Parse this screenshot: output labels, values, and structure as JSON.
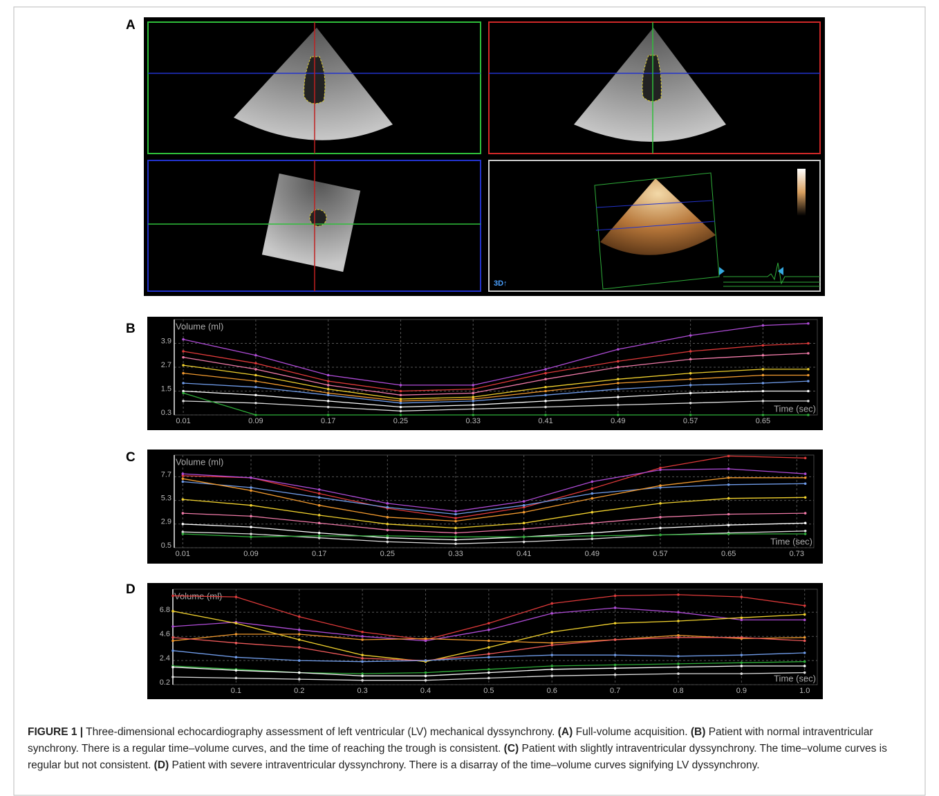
{
  "panels": {
    "A": "A",
    "B": "B",
    "C": "C",
    "D": "D",
    "label_3d": "3D↑"
  },
  "chart_data": [
    {
      "type": "line",
      "y_label": "Volume (ml)",
      "x_label": "Time (sec)",
      "xlim": [
        0,
        0.71
      ],
      "ylim": [
        0.3,
        5.1
      ],
      "xticks": [
        0.01,
        0.09,
        0.17,
        0.25,
        0.33,
        0.41,
        0.49,
        0.57,
        0.65
      ],
      "yticks": [
        0.3,
        1.5,
        2.7,
        3.9
      ],
      "grid": true,
      "x": [
        0.01,
        0.09,
        0.17,
        0.25,
        0.33,
        0.41,
        0.49,
        0.57,
        0.65,
        0.7
      ],
      "series": [
        {
          "color": "#b04cd8",
          "values": [
            4.1,
            3.3,
            2.3,
            1.8,
            1.8,
            2.6,
            3.6,
            4.3,
            4.8,
            4.9
          ]
        },
        {
          "color": "#e03a3a",
          "values": [
            3.5,
            2.9,
            2.0,
            1.5,
            1.6,
            2.4,
            3.0,
            3.5,
            3.8,
            3.9
          ]
        },
        {
          "color": "#f07aa8",
          "values": [
            3.2,
            2.6,
            1.8,
            1.3,
            1.4,
            2.1,
            2.7,
            3.1,
            3.3,
            3.4
          ]
        },
        {
          "color": "#f2d22e",
          "values": [
            2.8,
            2.3,
            1.6,
            1.1,
            1.2,
            1.7,
            2.1,
            2.4,
            2.6,
            2.6
          ]
        },
        {
          "color": "#f29a2e",
          "values": [
            2.4,
            2.0,
            1.4,
            1.0,
            1.1,
            1.5,
            1.9,
            2.1,
            2.3,
            2.3
          ]
        },
        {
          "color": "#6f9be8",
          "values": [
            1.9,
            1.7,
            1.3,
            0.9,
            1.0,
            1.3,
            1.6,
            1.8,
            1.9,
            2.0
          ]
        },
        {
          "color": "#ffffff",
          "values": [
            1.5,
            1.3,
            1.0,
            0.7,
            0.8,
            1.0,
            1.2,
            1.4,
            1.5,
            1.5
          ]
        },
        {
          "color": "#dddddd",
          "values": [
            1.0,
            0.9,
            0.7,
            0.5,
            0.6,
            0.7,
            0.8,
            0.9,
            1.0,
            1.0
          ]
        },
        {
          "color": "#2fae3a",
          "values": [
            1.4,
            0.3,
            0.3,
            0.3,
            0.3,
            0.3,
            0.3,
            0.3,
            0.3,
            0.3
          ]
        }
      ]
    },
    {
      "type": "line",
      "y_label": "Volume (ml)",
      "x_label": "Time (sec)",
      "xlim": [
        0,
        0.75
      ],
      "ylim": [
        0.5,
        9.9
      ],
      "xticks": [
        0.01,
        0.09,
        0.17,
        0.25,
        0.33,
        0.41,
        0.49,
        0.57,
        0.65,
        0.73
      ],
      "yticks": [
        0.5,
        2.9,
        5.3,
        7.7
      ],
      "grid": true,
      "x": [
        0.01,
        0.09,
        0.17,
        0.25,
        0.33,
        0.41,
        0.49,
        0.57,
        0.65,
        0.74
      ],
      "series": [
        {
          "color": "#e03a3a",
          "values": [
            7.8,
            7.6,
            6.0,
            4.5,
            3.5,
            4.6,
            6.5,
            8.6,
            9.8,
            9.6
          ]
        },
        {
          "color": "#b04cd8",
          "values": [
            8.0,
            7.6,
            6.4,
            5.0,
            4.2,
            5.2,
            7.2,
            8.4,
            8.5,
            8.0
          ]
        },
        {
          "color": "#6f9be8",
          "values": [
            7.2,
            6.6,
            5.6,
            4.6,
            3.9,
            4.8,
            6.0,
            6.6,
            6.9,
            7.0
          ]
        },
        {
          "color": "#f29a2e",
          "values": [
            7.5,
            6.3,
            4.8,
            3.6,
            3.2,
            4.1,
            5.5,
            6.8,
            7.6,
            7.6
          ]
        },
        {
          "color": "#f2d22e",
          "values": [
            5.4,
            4.8,
            3.8,
            2.9,
            2.5,
            3.0,
            4.1,
            5.0,
            5.5,
            5.6
          ]
        },
        {
          "color": "#f07aa8",
          "values": [
            4.0,
            3.7,
            3.0,
            2.3,
            2.0,
            2.4,
            3.0,
            3.6,
            3.9,
            4.0
          ]
        },
        {
          "color": "#ffffff",
          "values": [
            2.9,
            2.6,
            2.0,
            1.5,
            1.3,
            1.6,
            2.0,
            2.5,
            2.8,
            3.0
          ]
        },
        {
          "color": "#dddddd",
          "values": [
            2.1,
            1.9,
            1.5,
            1.1,
            0.9,
            1.1,
            1.4,
            1.8,
            2.0,
            2.2
          ]
        },
        {
          "color": "#2fae3a",
          "values": [
            1.9,
            1.6,
            1.7,
            1.7,
            1.6,
            1.6,
            1.7,
            1.8,
            1.9,
            1.9
          ]
        }
      ]
    },
    {
      "type": "line",
      "y_label": "Volume (ml)",
      "x_label": "Time (sec)",
      "xlim": [
        0,
        1.02
      ],
      "ylim": [
        0.2,
        8.9
      ],
      "xticks": [
        0.1,
        0.2,
        0.3,
        0.4,
        0.5,
        0.6,
        0.7,
        0.8,
        0.9,
        {
          "value": 1,
          "label": "1.0"
        }
      ],
      "yticks": [
        0.2,
        2.4,
        4.6,
        6.8
      ],
      "grid": true,
      "x": [
        0,
        0.1,
        0.2,
        0.3,
        0.4,
        0.5,
        0.6,
        0.7,
        0.8,
        0.9,
        1
      ],
      "series": [
        {
          "color": "#e03a3a",
          "values": [
            8.3,
            8.2,
            6.4,
            5.0,
            4.3,
            5.8,
            7.6,
            8.3,
            8.4,
            8.2,
            7.4
          ]
        },
        {
          "color": "#b04cd8",
          "values": [
            5.5,
            5.9,
            5.2,
            4.6,
            4.2,
            5.2,
            6.7,
            7.2,
            6.8,
            6.1,
            6.1
          ]
        },
        {
          "color": "#f2d22e",
          "values": [
            6.9,
            5.8,
            4.3,
            2.9,
            2.3,
            3.6,
            5.0,
            5.8,
            6.0,
            6.3,
            6.6
          ]
        },
        {
          "color": "#f29a2e",
          "values": [
            4.2,
            4.8,
            4.8,
            4.3,
            4.4,
            4.2,
            4.0,
            4.3,
            4.7,
            4.4,
            4.5
          ]
        },
        {
          "color": "#f05a5a",
          "values": [
            4.5,
            4.0,
            3.6,
            2.6,
            2.4,
            3.0,
            3.8,
            4.3,
            4.5,
            4.5,
            4.2
          ]
        },
        {
          "color": "#6f9be8",
          "values": [
            3.3,
            2.7,
            2.4,
            2.3,
            2.4,
            2.7,
            2.9,
            2.9,
            2.8,
            2.9,
            3.1
          ]
        },
        {
          "color": "#2fae3a",
          "values": [
            1.9,
            1.6,
            1.3,
            1.2,
            1.3,
            1.6,
            1.9,
            2.0,
            2.1,
            2.2,
            2.3
          ]
        },
        {
          "color": "#ffffff",
          "values": [
            1.8,
            1.5,
            1.3,
            1.0,
            1.0,
            1.3,
            1.6,
            1.7,
            1.8,
            1.9,
            1.9
          ]
        },
        {
          "color": "#dddddd",
          "values": [
            0.9,
            0.8,
            0.7,
            0.6,
            0.6,
            0.8,
            1.0,
            1.1,
            1.2,
            1.2,
            1.3
          ]
        }
      ]
    }
  ],
  "caption": [
    {
      "text": "FIGURE 1 |",
      "bold": true
    },
    {
      "text": " Three-dimensional echocardiography assessment of left ventricular (LV) mechanical dyssynchrony. ",
      "bold": false
    },
    {
      "text": "(A)",
      "bold": true
    },
    {
      "text": " Full-volume acquisition. ",
      "bold": false
    },
    {
      "text": "(B)",
      "bold": true
    },
    {
      "text": " Patient with normal intraventricular synchrony. There is a regular time–volume curves, and the time of reaching the trough is consistent. ",
      "bold": false
    },
    {
      "text": "(C)",
      "bold": true
    },
    {
      "text": " Patient with slightly intraventricular dyssynchrony. The time–volume curves is regular but not consistent. ",
      "bold": false
    },
    {
      "text": "(D)",
      "bold": true
    },
    {
      "text": " Patient with severe intraventricular dyssynchrony. There is a disarray of the time–volume curves signifying LV dyssynchrony.",
      "bold": false
    }
  ]
}
